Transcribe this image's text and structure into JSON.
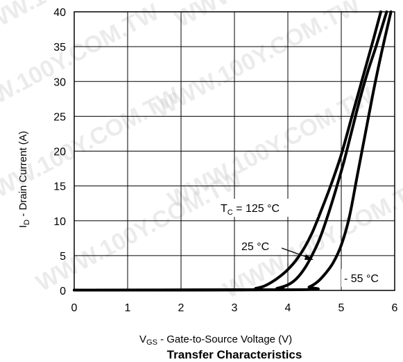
{
  "chart_data": {
    "type": "line",
    "title": "Transfer Characteristics",
    "xlabel": {
      "main": "V",
      "sub": "GS",
      "rest": "  -  Gate-to-Source Voltage (V)"
    },
    "ylabel": {
      "main": "I",
      "sub": "D",
      "rest": "  -  Drain Current (A)"
    },
    "xlim": [
      0,
      6
    ],
    "ylim": [
      0,
      40
    ],
    "x_ticks": [
      "0",
      "1",
      "2",
      "3",
      "4",
      "5",
      "6"
    ],
    "y_ticks": [
      "0",
      "5",
      "10",
      "15",
      "20",
      "25",
      "30",
      "35",
      "40"
    ],
    "grid": true,
    "series": [
      {
        "name": "TC = 125 °C",
        "x": [
          0.0,
          3.2,
          3.4,
          3.55,
          3.7,
          3.85,
          4.0,
          4.15,
          4.3,
          4.45,
          4.6,
          4.8,
          5.0,
          5.2,
          5.4,
          5.6,
          5.74
        ],
        "y": [
          0.05,
          0.1,
          0.3,
          0.6,
          1.2,
          2.0,
          3.0,
          4.3,
          6.0,
          8.2,
          11.0,
          15.0,
          19.5,
          25.0,
          30.5,
          36.0,
          40.0
        ]
      },
      {
        "name": "25 °C",
        "x": [
          0.0,
          3.6,
          3.8,
          4.0,
          4.15,
          4.3,
          4.45,
          4.6,
          4.75,
          4.9,
          5.05,
          5.2,
          5.35,
          5.5,
          5.65,
          5.85
        ],
        "y": [
          0.05,
          0.1,
          0.3,
          0.8,
          1.6,
          3.0,
          5.0,
          7.5,
          10.8,
          14.5,
          18.5,
          23.0,
          27.5,
          31.5,
          35.0,
          40.0
        ]
      },
      {
        "name": "- 55 °C",
        "x": [
          0.0,
          4.2,
          4.4,
          4.55,
          4.7,
          4.85,
          5.0,
          5.15,
          5.3,
          5.45,
          5.6,
          5.75,
          5.93
        ],
        "y": [
          0.05,
          0.1,
          0.5,
          1.2,
          2.4,
          4.0,
          6.5,
          10.5,
          16.5,
          22.5,
          28.5,
          34.0,
          40.0
        ]
      }
    ],
    "annotations": [
      {
        "text_main": "T",
        "text_sub": "C",
        "text_rest": " = 125 °C"
      },
      {
        "text": "25  °C"
      },
      {
        "text": "- 55  °C"
      }
    ]
  },
  "watermark": "WWW.100Y.COM.TW"
}
